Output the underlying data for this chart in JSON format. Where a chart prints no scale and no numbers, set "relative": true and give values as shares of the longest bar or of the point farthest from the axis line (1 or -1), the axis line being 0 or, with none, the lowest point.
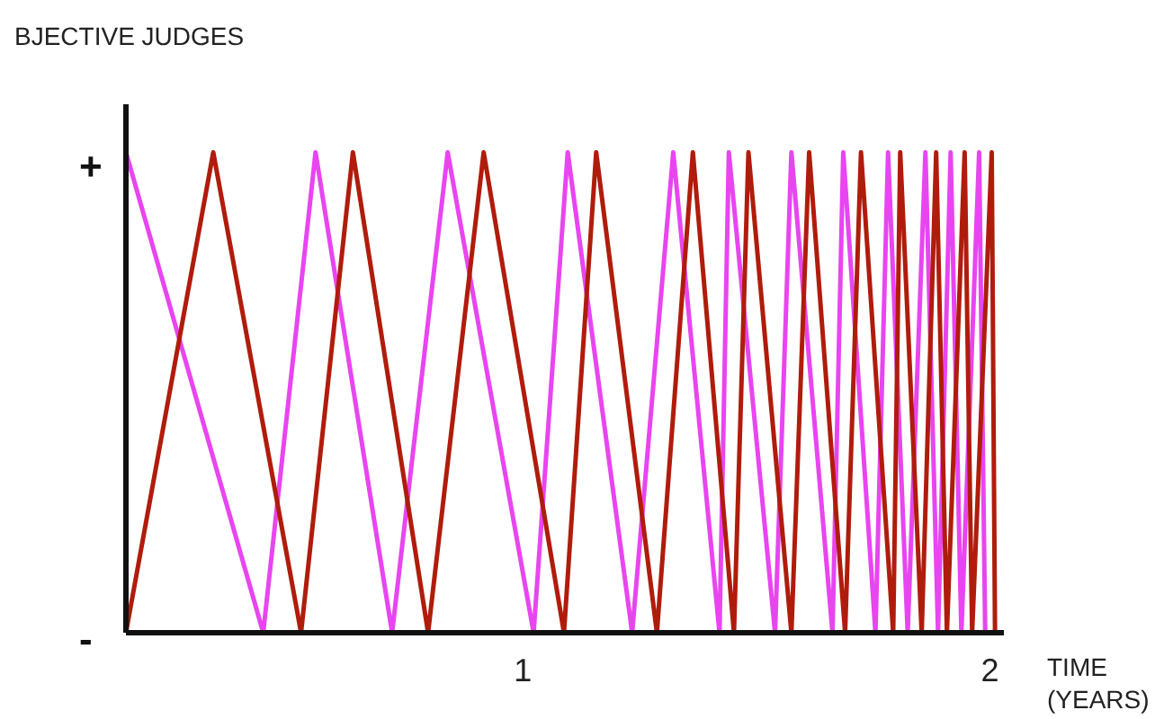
{
  "chart_data": {
    "type": "line",
    "title": "BJECTIVE JUDGES",
    "xlabel": "TIME\n(YEARS)",
    "xlim": [
      0.15,
      2.03
    ],
    "xticks": [
      1,
      2
    ],
    "relative": true,
    "annotations": [
      "+",
      "-"
    ],
    "grid": false,
    "marker": "none",
    "line_style": "solid",
    "series": [
      {
        "color": "#e845f0",
        "x": [
          0.15,
          0.444,
          0.556,
          0.72,
          0.839,
          1.023,
          1.096,
          1.234,
          1.322,
          1.421,
          1.441,
          1.54,
          1.575,
          1.663,
          1.686,
          1.755,
          1.782,
          1.824,
          1.862,
          1.889,
          1.916,
          1.939,
          1.977,
          1.99
        ],
        "values": [
          1,
          0,
          1,
          0,
          1,
          0,
          1,
          0,
          1,
          0,
          1,
          0,
          1,
          0,
          1,
          0,
          1,
          0,
          1,
          0,
          1,
          0,
          1,
          0
        ]
      },
      {
        "color": "#b01c0c",
        "x": [
          0.15,
          0.337,
          0.525,
          0.636,
          0.797,
          0.916,
          1.088,
          1.157,
          1.287,
          1.364,
          1.452,
          1.483,
          1.575,
          1.613,
          1.69,
          1.724,
          1.793,
          1.808,
          1.854,
          1.885,
          1.908,
          1.946,
          1.962,
          2.004,
          2.011
        ],
        "values": [
          0,
          1,
          0,
          1,
          0,
          1,
          0,
          1,
          0,
          1,
          0,
          1,
          0,
          1,
          0,
          1,
          0,
          1,
          0,
          1,
          0,
          1,
          0,
          1,
          0
        ]
      }
    ]
  }
}
